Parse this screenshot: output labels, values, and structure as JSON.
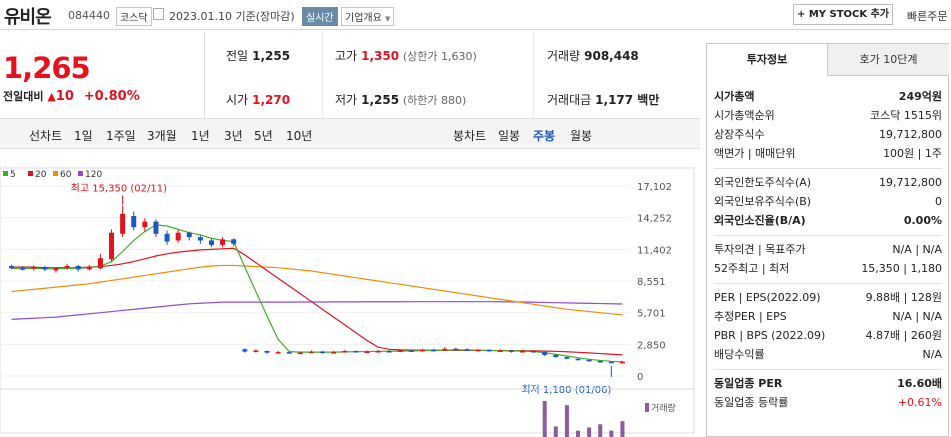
{
  "header": {
    "stock_name": "유비온",
    "stock_code": "084440",
    "market_tag": "코스닥",
    "date_text": "2023.01.10 기준(장마감)",
    "realtime_badge": "실시간",
    "company_overview": "기업개요",
    "mystock_button": "+ MY STOCK 추가",
    "quick_order": "빠른주문"
  },
  "price": {
    "current": "1,265",
    "change_label": "전일대비",
    "change_amount": "10",
    "change_pct": "+0.80%"
  },
  "summary": {
    "prev_close_label": "전일",
    "prev_close": "1,255",
    "high_label": "고가",
    "high": "1,350",
    "upper_limit": "(상한가 1,630)",
    "volume_label": "거래량",
    "volume": "908,448",
    "open_label": "시가",
    "open": "1,270",
    "low_label": "저가",
    "low": "1,255",
    "lower_limit": "(하한가 880)",
    "amount_label": "거래대금",
    "amount": "1,177 백만"
  },
  "period_bar": {
    "line_label": "선차트",
    "line_items": [
      "1일",
      "1주일",
      "3개월",
      "1년",
      "3년",
      "5년",
      "10년"
    ],
    "candle_label": "봉차트",
    "candle_items": [
      "일봉",
      "주봉",
      "월봉"
    ],
    "candle_active": "주봉"
  },
  "chart_data": {
    "type": "candlestick",
    "legend": [
      {
        "name": "5",
        "color": "#3fae29"
      },
      {
        "name": "20",
        "color": "#e4121d"
      },
      {
        "name": "60",
        "color": "#f08c00"
      },
      {
        "name": "120",
        "color": "#8a4fd0"
      }
    ],
    "y_ticks": [
      "17,102",
      "14,252",
      "11,402",
      "8,551",
      "5,701",
      "2,850",
      "0"
    ],
    "ylim": [
      0,
      17102
    ],
    "max_annotation": "최고 15,350 (02/11)",
    "min_annotation": "최저 1,180 (01/06)",
    "volume_label": "거래량",
    "candles": [
      [
        9900,
        9700,
        10000,
        9600,
        "d"
      ],
      [
        9700,
        9600,
        9900,
        9500,
        "d"
      ],
      [
        9650,
        9800,
        9950,
        9500,
        "u"
      ],
      [
        9800,
        9600,
        9900,
        9450,
        "d"
      ],
      [
        9500,
        9700,
        9800,
        9300,
        "u"
      ],
      [
        9700,
        9900,
        10100,
        9550,
        "u"
      ],
      [
        9900,
        9600,
        10000,
        9400,
        "d"
      ],
      [
        9600,
        9800,
        10000,
        9500,
        "u"
      ],
      [
        9700,
        10600,
        11000,
        9600,
        "u"
      ],
      [
        10500,
        12900,
        13200,
        10300,
        "u"
      ],
      [
        12800,
        14600,
        15350,
        12500,
        "u"
      ],
      [
        14400,
        13400,
        14800,
        13100,
        "d"
      ],
      [
        13400,
        13900,
        14200,
        13000,
        "u"
      ],
      [
        13900,
        12800,
        14100,
        12500,
        "d"
      ],
      [
        12800,
        12100,
        13100,
        11800,
        "d"
      ],
      [
        12200,
        12900,
        13200,
        12000,
        "u"
      ],
      [
        12900,
        12500,
        13000,
        12200,
        "d"
      ],
      [
        12500,
        12200,
        12700,
        11900,
        "d"
      ],
      [
        12200,
        11800,
        12400,
        11600,
        "d"
      ],
      [
        11800,
        12300,
        12500,
        11600,
        "u"
      ],
      [
        12300,
        11900,
        12400,
        11700,
        "d"
      ],
      [
        2400,
        2200,
        2500,
        2100,
        "d"
      ],
      [
        2200,
        2300,
        2400,
        2100,
        "u"
      ],
      [
        2250,
        2100,
        2300,
        2000,
        "d"
      ],
      [
        2100,
        2150,
        2250,
        2050,
        "u"
      ],
      [
        2150,
        2050,
        2200,
        2000,
        "d"
      ],
      [
        2050,
        2100,
        2200,
        2000,
        "u"
      ],
      [
        2100,
        2200,
        2300,
        2050,
        "u"
      ],
      [
        2200,
        2100,
        2250,
        2000,
        "d"
      ],
      [
        2100,
        2150,
        2250,
        2050,
        "u"
      ],
      [
        2150,
        2250,
        2350,
        2100,
        "u"
      ],
      [
        2250,
        2150,
        2300,
        2100,
        "d"
      ],
      [
        2150,
        2200,
        2300,
        2100,
        "u"
      ],
      [
        2200,
        2250,
        2350,
        2150,
        "u"
      ],
      [
        2250,
        2200,
        2350,
        2150,
        "d"
      ],
      [
        2200,
        2300,
        2400,
        2150,
        "u"
      ],
      [
        2300,
        2250,
        2400,
        2200,
        "d"
      ],
      [
        2250,
        2350,
        2450,
        2200,
        "u"
      ],
      [
        2350,
        2300,
        2450,
        2250,
        "d"
      ],
      [
        2300,
        2450,
        2600,
        2250,
        "u"
      ],
      [
        2450,
        2400,
        2550,
        2350,
        "d"
      ],
      [
        2400,
        2300,
        2500,
        2250,
        "d"
      ],
      [
        2300,
        2350,
        2450,
        2250,
        "u"
      ],
      [
        2350,
        2250,
        2400,
        2200,
        "d"
      ],
      [
        2250,
        2300,
        2400,
        2200,
        "u"
      ],
      [
        2300,
        2200,
        2350,
        2100,
        "d"
      ],
      [
        2200,
        2250,
        2350,
        2150,
        "u"
      ],
      [
        2250,
        2150,
        2300,
        2100,
        "d"
      ],
      [
        2150,
        1900,
        2200,
        1800,
        "d"
      ],
      [
        1900,
        1700,
        1950,
        1650,
        "d"
      ],
      [
        1700,
        1550,
        1750,
        1500,
        "d"
      ],
      [
        1550,
        1450,
        1600,
        1400,
        "d"
      ],
      [
        1450,
        1350,
        1500,
        1300,
        "d"
      ],
      [
        1350,
        1280,
        1400,
        1200,
        "d"
      ],
      [
        1280,
        1250,
        1330,
        1180,
        "d"
      ],
      [
        1255,
        1265,
        1350,
        1255,
        "u"
      ]
    ],
    "ma5": [
      9700,
      9700,
      9700,
      9650,
      9650,
      9700,
      9700,
      9750,
      9900,
      10300,
      11200,
      12200,
      13000,
      13600,
      13500,
      13200,
      12900,
      12700,
      12400,
      12200,
      12100,
      9800,
      7600,
      5400,
      3300,
      2200,
      2150,
      2150,
      2150,
      2150,
      2170,
      2190,
      2200,
      2220,
      2230,
      2250,
      2260,
      2280,
      2300,
      2320,
      2350,
      2340,
      2320,
      2300,
      2280,
      2260,
      2240,
      2200,
      2100,
      1950,
      1800,
      1650,
      1500,
      1400,
      1320,
      1280
    ],
    "ma20": [
      9800,
      9800,
      9800,
      9750,
      9750,
      9750,
      9750,
      9800,
      9850,
      9950,
      10100,
      10300,
      10550,
      10800,
      11000,
      11150,
      11250,
      11350,
      11400,
      11450,
      11500,
      10900,
      10200,
      9500,
      8800,
      8100,
      7400,
      6700,
      6000,
      5300,
      4600,
      3900,
      3200,
      2600,
      2400,
      2350,
      2330,
      2320,
      2320,
      2310,
      2300,
      2300,
      2300,
      2300,
      2290,
      2280,
      2270,
      2260,
      2240,
      2220,
      2180,
      2130,
      2080,
      2020,
      1960,
      1900
    ],
    "ma60": [
      7600,
      7700,
      7800,
      7900,
      8000,
      8100,
      8200,
      8300,
      8450,
      8600,
      8750,
      8900,
      9050,
      9200,
      9350,
      9500,
      9650,
      9800,
      9900,
      9950,
      9950,
      9900,
      9850,
      9800,
      9750,
      9650,
      9550,
      9450,
      9300,
      9150,
      9000,
      8850,
      8700,
      8550,
      8400,
      8250,
      8100,
      7950,
      7800,
      7650,
      7500,
      7350,
      7200,
      7050,
      6900,
      6750,
      6600,
      6450,
      6300,
      6150,
      6000,
      5900,
      5800,
      5700,
      5600,
      5500
    ],
    "ma120": [
      5100,
      5150,
      5200,
      5250,
      5300,
      5400,
      5500,
      5600,
      5700,
      5800,
      5900,
      6000,
      6100,
      6200,
      6300,
      6400,
      6500,
      6550,
      6600,
      6650,
      6650,
      6650,
      6650,
      6650,
      6650,
      6650,
      6660,
      6660,
      6660,
      6670,
      6670,
      6670,
      6680,
      6680,
      6680,
      6680,
      6690,
      6690,
      6690,
      6690,
      6690,
      6690,
      6690,
      6690,
      6680,
      6670,
      6660,
      6640,
      6620,
      6600,
      6580,
      6560,
      6540,
      6520,
      6500,
      6480
    ],
    "volumes": [
      0,
      0,
      0,
      0,
      0,
      0,
      0,
      0,
      0,
      0,
      0,
      0,
      0,
      0,
      0,
      0,
      0,
      0,
      0,
      0,
      0,
      0,
      0,
      0,
      0,
      0,
      0,
      0,
      0,
      0,
      0,
      0,
      0,
      0,
      0,
      0,
      0,
      0,
      0,
      0,
      0,
      0,
      0,
      0,
      0,
      0,
      0,
      0,
      34,
      10,
      30,
      6,
      9,
      12,
      6,
      15
    ]
  },
  "right_panel": {
    "tab_invest": "투자정보",
    "tab_hoga": "호가 10단계",
    "rows1": [
      {
        "k": "시가총액",
        "v": "249억원",
        "bold": true
      },
      {
        "k": "시가총액순위",
        "v": "코스닥 1515위"
      },
      {
        "k": "상장주식수",
        "v": "19,712,800"
      },
      {
        "k": "액면가 | 매매단위",
        "v": "100원 | 1주"
      }
    ],
    "rows2": [
      {
        "k": "외국인한도주식수(A)",
        "v": "19,712,800"
      },
      {
        "k": "외국인보유주식수(B)",
        "v": "0"
      },
      {
        "k": "외국인소진율(B/A)",
        "v": "0.00%",
        "bold": true
      }
    ],
    "rows3": [
      {
        "k": "투자의견 | 목표주가",
        "v": "N/A | N/A"
      },
      {
        "k": "52주최고 | 최저",
        "v": "15,350 | 1,180"
      }
    ],
    "rows4": [
      {
        "k": "PER | EPS(2022.09)",
        "v": "9.88배 | 128원"
      },
      {
        "k": "추정PER | EPS",
        "v": "N/A | N/A"
      },
      {
        "k": "PBR | BPS (2022.09)",
        "v": "4.87배 | 260원"
      },
      {
        "k": "배당수익률",
        "v": "N/A"
      }
    ],
    "rows5": [
      {
        "k": "동일업종 PER",
        "v": "16.60배",
        "bold": true
      },
      {
        "k": "동일업종 등락률",
        "v": "+0.61%",
        "up": true
      }
    ]
  }
}
